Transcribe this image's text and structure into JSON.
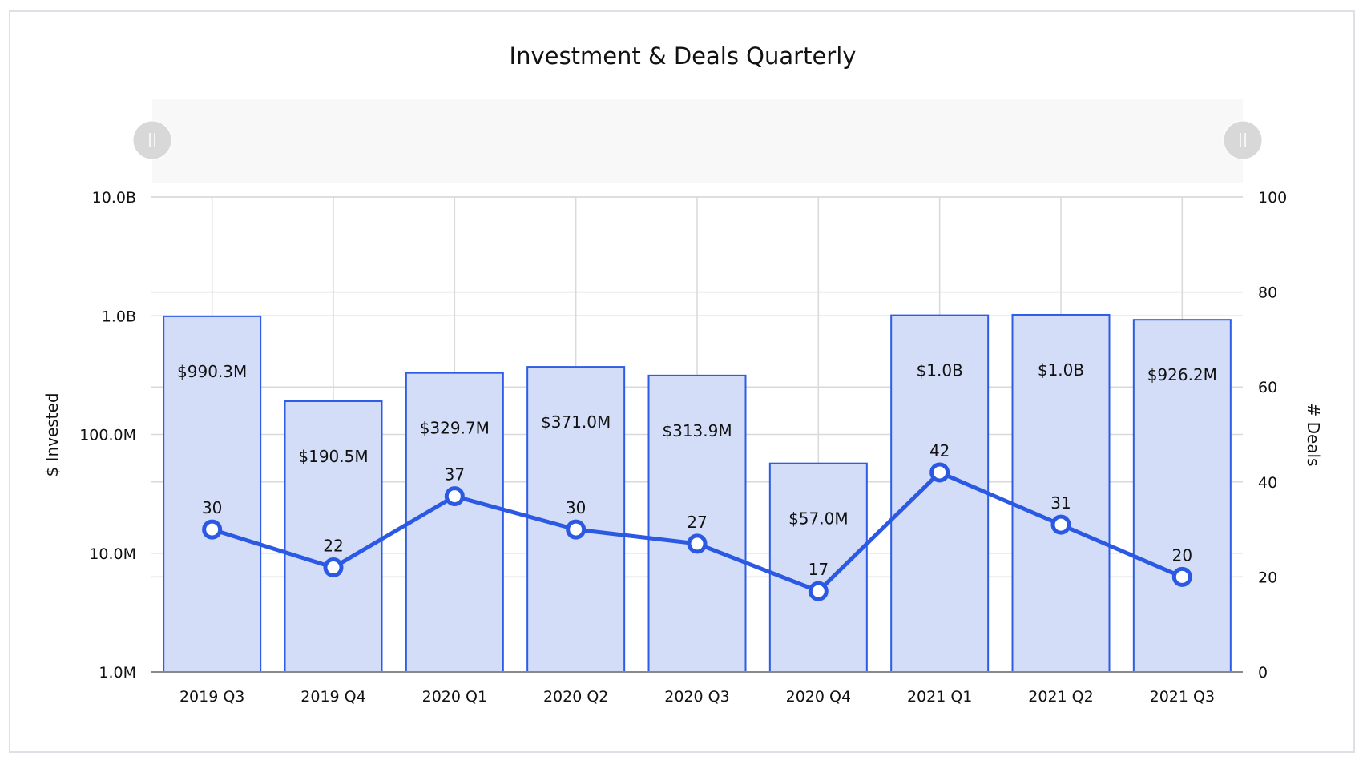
{
  "chart_data": {
    "type": "bar+line",
    "title": "Investment & Deals Quarterly",
    "categories": [
      "2019 Q3",
      "2019 Q4",
      "2020 Q1",
      "2020 Q2",
      "2020 Q3",
      "2020 Q4",
      "2021 Q1",
      "2021 Q2",
      "2021 Q3"
    ],
    "series": [
      {
        "type": "bar",
        "axis": "left",
        "values": [
          990300000,
          190500000,
          329700000,
          371000000,
          313900000,
          57000000,
          1010000000,
          1020000000,
          926200000
        ],
        "labels": [
          "$990.3M",
          "$190.5M",
          "$329.7M",
          "$371.0M",
          "$313.9M",
          "$57.0M",
          "$1.0B",
          "$1.0B",
          "$926.2M"
        ]
      },
      {
        "type": "line",
        "axis": "right",
        "values": [
          30,
          22,
          37,
          30,
          27,
          17,
          42,
          31,
          20
        ]
      }
    ],
    "left_axis": {
      "label": "$ Invested",
      "scale": "log",
      "ylim": [
        1000000,
        10000000000
      ],
      "ticks": [
        "1.0M",
        "10.0M",
        "100.0M",
        "1.0B",
        "10.0B"
      ]
    },
    "right_axis": {
      "label": "# Deals",
      "scale": "linear",
      "ylim": [
        0,
        100
      ],
      "ticks": [
        "0",
        "20",
        "40",
        "60",
        "80",
        "100"
      ]
    },
    "grid": true,
    "range_slider": true,
    "colors": {
      "bar_fill": "#d3ddf7",
      "bar_stroke": "#2f5ce6",
      "line": "#2b59e3",
      "grid": "#d9d9d9"
    }
  }
}
